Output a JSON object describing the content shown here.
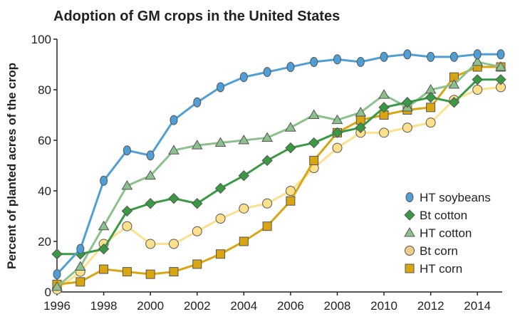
{
  "chart_data": {
    "type": "line",
    "title": "Adoption of GM crops in the United States",
    "xlabel": "",
    "ylabel": "Percent of planted acres of the crop",
    "xlim": [
      1996,
      2015
    ],
    "ylim": [
      0,
      100
    ],
    "x": [
      1996,
      1997,
      1998,
      1999,
      2000,
      2001,
      2002,
      2003,
      2004,
      2005,
      2006,
      2007,
      2008,
      2009,
      2010,
      2011,
      2012,
      2013,
      2014,
      2015
    ],
    "x_ticks": [
      "1996",
      "1998",
      "2000",
      "2002",
      "2004",
      "2006",
      "2008",
      "2010",
      "2012",
      "2014"
    ],
    "y_ticks": [
      "0",
      "20",
      "40",
      "60",
      "80",
      "100"
    ],
    "grid": false,
    "legend_position": "bottom-right",
    "series": [
      {
        "name": "HT soybeans",
        "marker": "ellipse",
        "color": "#4f9fd6",
        "values": [
          7,
          17,
          44,
          56,
          54,
          68,
          75,
          81,
          85,
          87,
          89,
          91,
          92,
          91,
          93,
          94,
          93,
          93,
          94,
          94
        ]
      },
      {
        "name": "Bt cotton",
        "marker": "diamond",
        "color": "#3a9a43",
        "values": [
          15,
          15,
          17,
          32,
          35,
          37,
          35,
          41,
          46,
          52,
          57,
          59,
          63,
          65,
          73,
          75,
          77,
          75,
          84,
          84
        ]
      },
      {
        "name": "HT cotton",
        "marker": "triangle",
        "color": "#8cc08c",
        "values": [
          2,
          10,
          26,
          42,
          46,
          56,
          58,
          59,
          60,
          61,
          65,
          70,
          68,
          71,
          78,
          73,
          80,
          82,
          91,
          89
        ]
      },
      {
        "name": "Bt corn",
        "marker": "circle",
        "color": "#fde08c",
        "values": [
          1,
          8,
          19,
          26,
          19,
          19,
          24,
          29,
          33,
          35,
          40,
          49,
          57,
          63,
          63,
          65,
          67,
          76,
          80,
          81
        ]
      },
      {
        "name": "HT corn",
        "marker": "square",
        "color": "#d9a511",
        "values": [
          3,
          4,
          9,
          8,
          7,
          8,
          11,
          15,
          20,
          26,
          36,
          52,
          63,
          68,
          70,
          72,
          73,
          85,
          89,
          89
        ]
      }
    ]
  }
}
